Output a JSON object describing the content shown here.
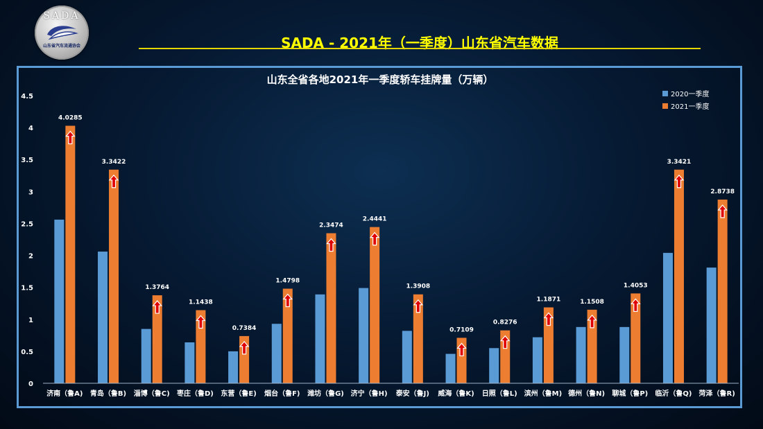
{
  "header": {
    "logo_text": "SADA",
    "logo_subtext": "山东省汽车流通协会",
    "title": "SADA -  2021年（一季度）山东省汽车数据"
  },
  "colors": {
    "series2020": "#5b9bd5",
    "series2021": "#ed7d31",
    "arrow": "#e00000",
    "title": "#ffff00",
    "frame": "#5b9bd5"
  },
  "chart_data": {
    "type": "bar",
    "title": "山东全省各地2021年一季度轿车挂牌量（万辆）",
    "categories": [
      "济南（鲁A)",
      "青岛（鲁B)",
      "淄博（鲁C)",
      "枣庄（鲁D)",
      "东营（鲁E)",
      "烟台（鲁F)",
      "潍坊（鲁G)",
      "济宁（鲁H)",
      "泰安（鲁J)",
      "威海（鲁K)",
      "日照（鲁L)",
      "滨州（鲁M)",
      "德州（鲁N)",
      "聊城（鲁P)",
      "临沂（鲁Q)",
      "菏泽（鲁R)"
    ],
    "series": [
      {
        "name": "2020一季度",
        "values": [
          2.56,
          2.06,
          0.85,
          0.64,
          0.5,
          0.93,
          1.39,
          1.49,
          0.82,
          0.46,
          0.55,
          0.72,
          0.88,
          0.88,
          2.04,
          1.81
        ]
      },
      {
        "name": "2021一季度",
        "values": [
          4.0285,
          3.3422,
          1.3764,
          1.1438,
          0.7384,
          1.4798,
          2.3474,
          2.4441,
          1.3908,
          0.7109,
          0.8276,
          1.1871,
          1.1508,
          1.4053,
          3.3421,
          2.8738
        ]
      }
    ],
    "data_labels": [
      "4.0285",
      "3.3422",
      "1.3764",
      "1.1438",
      "0.7384",
      "1.4798",
      "2.3474",
      "2.4441",
      "1.3908",
      "0.7109",
      "0.8276",
      "1.1871",
      "1.1508",
      "1.4053",
      "3.3421",
      "2.8738"
    ],
    "yticks": [
      "0",
      "0.5",
      "1",
      "1.5",
      "2",
      "2.5",
      "3",
      "3.5",
      "4",
      "4.5"
    ],
    "ylim": [
      0,
      4.5
    ],
    "legend_position": "top-right",
    "grid": false
  }
}
